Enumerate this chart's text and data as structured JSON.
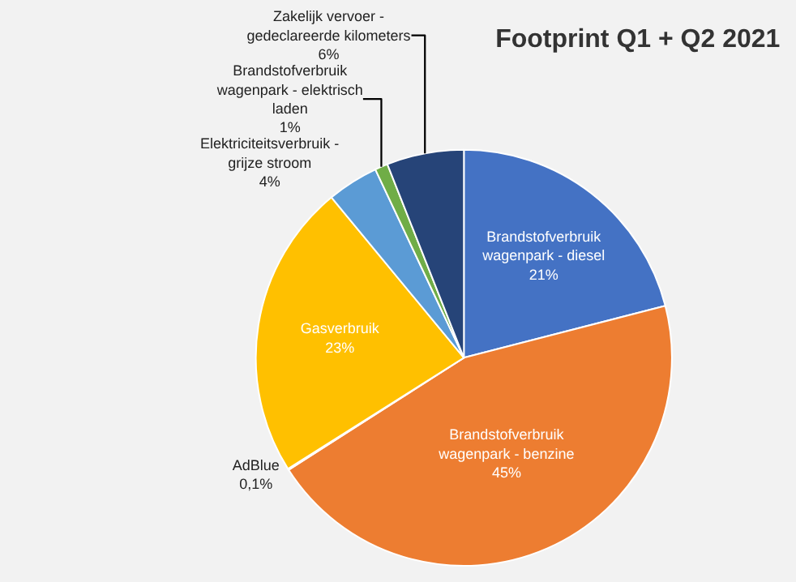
{
  "chart_data": {
    "type": "pie",
    "title": "Footprint Q1 + Q2 2021",
    "categories": [
      "Brandstofverbruik wagenpark - diesel",
      "Brandstofverbruik wagenpark - benzine",
      "AdBlue",
      "Gasverbruik",
      "Elektriciteitsverbruik - grijze stroom",
      "Brandstofverbruik wagenpark - elektrisch laden",
      "Zakelijk vervoer - gedeclareerde kilometers"
    ],
    "values": [
      21,
      45,
      0.1,
      23,
      4,
      1,
      6
    ],
    "value_labels": [
      "21%",
      "45%",
      "0,1%",
      "23%",
      "4%",
      "1%",
      "6%"
    ],
    "colors": [
      "#4472c4",
      "#ed7d31",
      "#a5a5a5",
      "#ffc000",
      "#5b9bd5",
      "#70ad47",
      "#264478"
    ],
    "legend": false
  }
}
